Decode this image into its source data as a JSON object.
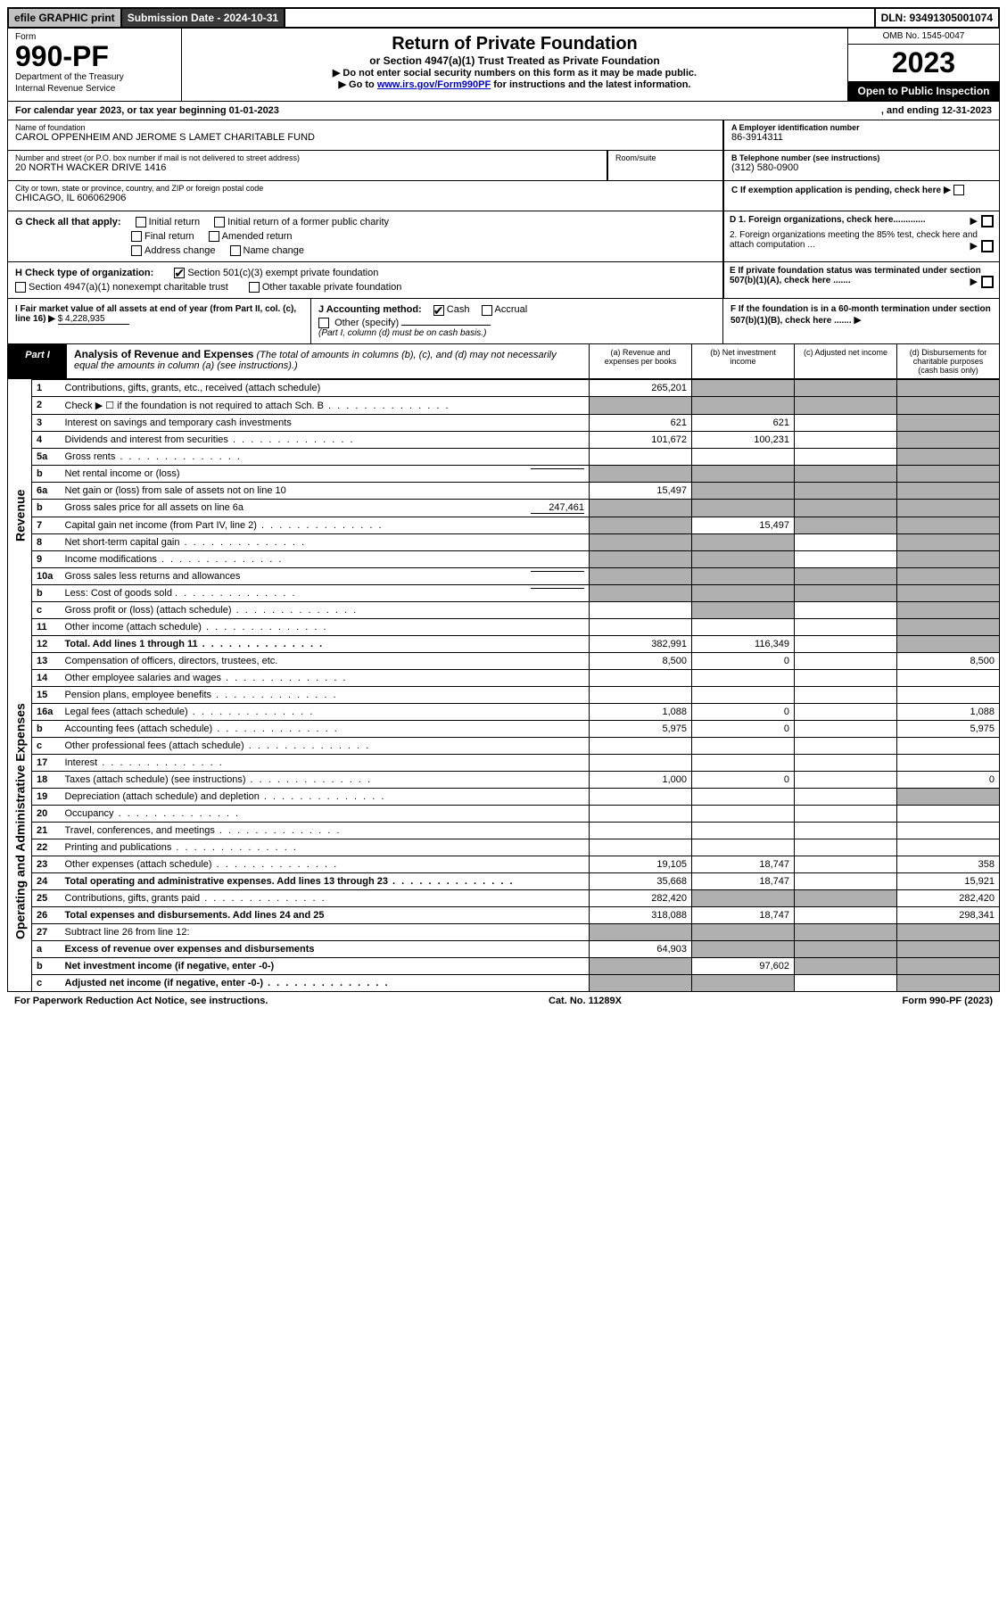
{
  "topbar": {
    "efile_btn": "efile GRAPHIC print",
    "submission_label": "Submission Date - 2024-10-31",
    "dln": "DLN: 93491305001074"
  },
  "header": {
    "form_word": "Form",
    "form_number": "990-PF",
    "dept": "Department of the Treasury",
    "irs": "Internal Revenue Service",
    "title": "Return of Private Foundation",
    "subtitle": "or Section 4947(a)(1) Trust Treated as Private Foundation",
    "note1": "▶ Do not enter social security numbers on this form as it may be made public.",
    "note2_prefix": "▶ Go to ",
    "note2_link": "www.irs.gov/Form990PF",
    "note2_suffix": " for instructions and the latest information.",
    "omb": "OMB No. 1545-0047",
    "year": "2023",
    "open": "Open to Public Inspection"
  },
  "calendar": {
    "text_left": "For calendar year 2023, or tax year beginning 01-01-2023",
    "text_right": ", and ending 12-31-2023"
  },
  "foundation": {
    "name_label": "Name of foundation",
    "name": "CAROL OPPENHEIM AND JEROME S LAMET CHARITABLE FUND",
    "ein_label": "A Employer identification number",
    "ein": "86-3914311",
    "addr_label": "Number and street (or P.O. box number if mail is not delivered to street address)",
    "addr": "20 NORTH WACKER DRIVE 1416",
    "room_label": "Room/suite",
    "tel_label": "B Telephone number (see instructions)",
    "tel": "(312) 580-0900",
    "city_label": "City or town, state or province, country, and ZIP or foreign postal code",
    "city": "CHICAGO, IL  606062906",
    "c_label": "C If exemption application is pending, check here"
  },
  "checks": {
    "G_label": "G Check all that apply:",
    "initial": "Initial return",
    "initial_former": "Initial return of a former public charity",
    "final": "Final return",
    "amended": "Amended return",
    "addr_change": "Address change",
    "name_change": "Name change",
    "D1": "D 1. Foreign organizations, check here.............",
    "D2": "2. Foreign organizations meeting the 85% test, check here and attach computation ...",
    "H_label": "H Check type of organization:",
    "H501c3": "Section 501(c)(3) exempt private foundation",
    "H4947": "Section 4947(a)(1) nonexempt charitable trust",
    "Hother": "Other taxable private foundation",
    "E_label": "E If private foundation status was terminated under section 507(b)(1)(A), check here .......",
    "I_label": "I Fair market value of all assets at end of year (from Part II, col. (c), line 16) ▶",
    "I_value": "$ 4,228,935",
    "J_label": "J Accounting method:",
    "J_cash": "Cash",
    "J_accrual": "Accrual",
    "J_other": "Other (specify)",
    "J_note": "(Part I, column (d) must be on cash basis.)",
    "F_label": "F If the foundation is in a 60-month termination under section 507(b)(1)(B), check here ......."
  },
  "part1": {
    "label": "Part I",
    "title": "Analysis of Revenue and Expenses",
    "title_note": " (The total of amounts in columns (b), (c), and (d) may not necessarily equal the amounts in column (a) (see instructions).)",
    "col_a": "(a) Revenue and expenses per books",
    "col_b": "(b) Net investment income",
    "col_c": "(c) Adjusted net income",
    "col_d": "(d) Disbursements for charitable purposes (cash basis only)"
  },
  "sections": {
    "revenue": "Revenue",
    "expenses": "Operating and Administrative Expenses"
  },
  "rows": [
    {
      "n": "1",
      "desc": "Contributions, gifts, grants, etc., received (attach schedule)",
      "a": "265,201",
      "b": "grey",
      "c": "grey",
      "d": "grey"
    },
    {
      "n": "2",
      "desc": "Check ▶ ☐ if the foundation is not required to attach Sch. B",
      "dots": true,
      "a": "grey",
      "b": "grey",
      "c": "grey",
      "d": "grey"
    },
    {
      "n": "3",
      "desc": "Interest on savings and temporary cash investments",
      "a": "621",
      "b": "621",
      "c": "",
      "d": "grey"
    },
    {
      "n": "4",
      "desc": "Dividends and interest from securities",
      "dots": true,
      "a": "101,672",
      "b": "100,231",
      "c": "",
      "d": "grey"
    },
    {
      "n": "5a",
      "desc": "Gross rents",
      "dots": true,
      "a": "",
      "b": "",
      "c": "",
      "d": "grey"
    },
    {
      "n": "b",
      "desc": "Net rental income or (loss)",
      "inline": "",
      "a": "grey",
      "b": "grey",
      "c": "grey",
      "d": "grey"
    },
    {
      "n": "6a",
      "desc": "Net gain or (loss) from sale of assets not on line 10",
      "a": "15,497",
      "b": "grey",
      "c": "grey",
      "d": "grey"
    },
    {
      "n": "b",
      "desc": "Gross sales price for all assets on line 6a",
      "inline": "247,461",
      "a": "grey",
      "b": "grey",
      "c": "grey",
      "d": "grey"
    },
    {
      "n": "7",
      "desc": "Capital gain net income (from Part IV, line 2)",
      "dots": true,
      "a": "grey",
      "b": "15,497",
      "c": "grey",
      "d": "grey"
    },
    {
      "n": "8",
      "desc": "Net short-term capital gain",
      "dots": true,
      "a": "grey",
      "b": "grey",
      "c": "",
      "d": "grey"
    },
    {
      "n": "9",
      "desc": "Income modifications",
      "dots": true,
      "a": "grey",
      "b": "grey",
      "c": "",
      "d": "grey"
    },
    {
      "n": "10a",
      "desc": "Gross sales less returns and allowances",
      "inline": "",
      "a": "grey",
      "b": "grey",
      "c": "grey",
      "d": "grey"
    },
    {
      "n": "b",
      "desc": "Less: Cost of goods sold",
      "dots": true,
      "inline": "",
      "a": "grey",
      "b": "grey",
      "c": "grey",
      "d": "grey"
    },
    {
      "n": "c",
      "desc": "Gross profit or (loss) (attach schedule)",
      "dots": true,
      "a": "",
      "b": "grey",
      "c": "",
      "d": "grey"
    },
    {
      "n": "11",
      "desc": "Other income (attach schedule)",
      "dots": true,
      "a": "",
      "b": "",
      "c": "",
      "d": "grey"
    },
    {
      "n": "12",
      "desc": "Total. Add lines 1 through 11",
      "bold": true,
      "dots": true,
      "a": "382,991",
      "b": "116,349",
      "c": "",
      "d": "grey"
    },
    {
      "n": "13",
      "desc": "Compensation of officers, directors, trustees, etc.",
      "a": "8,500",
      "b": "0",
      "c": "",
      "d": "8,500"
    },
    {
      "n": "14",
      "desc": "Other employee salaries and wages",
      "dots": true,
      "a": "",
      "b": "",
      "c": "",
      "d": ""
    },
    {
      "n": "15",
      "desc": "Pension plans, employee benefits",
      "dots": true,
      "a": "",
      "b": "",
      "c": "",
      "d": ""
    },
    {
      "n": "16a",
      "desc": "Legal fees (attach schedule)",
      "dots": true,
      "a": "1,088",
      "b": "0",
      "c": "",
      "d": "1,088"
    },
    {
      "n": "b",
      "desc": "Accounting fees (attach schedule)",
      "dots": true,
      "a": "5,975",
      "b": "0",
      "c": "",
      "d": "5,975"
    },
    {
      "n": "c",
      "desc": "Other professional fees (attach schedule)",
      "dots": true,
      "a": "",
      "b": "",
      "c": "",
      "d": ""
    },
    {
      "n": "17",
      "desc": "Interest",
      "dots": true,
      "a": "",
      "b": "",
      "c": "",
      "d": ""
    },
    {
      "n": "18",
      "desc": "Taxes (attach schedule) (see instructions)",
      "dots": true,
      "a": "1,000",
      "b": "0",
      "c": "",
      "d": "0"
    },
    {
      "n": "19",
      "desc": "Depreciation (attach schedule) and depletion",
      "dots": true,
      "a": "",
      "b": "",
      "c": "",
      "d": "grey"
    },
    {
      "n": "20",
      "desc": "Occupancy",
      "dots": true,
      "a": "",
      "b": "",
      "c": "",
      "d": ""
    },
    {
      "n": "21",
      "desc": "Travel, conferences, and meetings",
      "dots": true,
      "a": "",
      "b": "",
      "c": "",
      "d": ""
    },
    {
      "n": "22",
      "desc": "Printing and publications",
      "dots": true,
      "a": "",
      "b": "",
      "c": "",
      "d": ""
    },
    {
      "n": "23",
      "desc": "Other expenses (attach schedule)",
      "dots": true,
      "a": "19,105",
      "b": "18,747",
      "c": "",
      "d": "358"
    },
    {
      "n": "24",
      "desc": "Total operating and administrative expenses. Add lines 13 through 23",
      "bold": true,
      "dots": true,
      "a": "35,668",
      "b": "18,747",
      "c": "",
      "d": "15,921"
    },
    {
      "n": "25",
      "desc": "Contributions, gifts, grants paid",
      "dots": true,
      "a": "282,420",
      "b": "grey",
      "c": "grey",
      "d": "282,420"
    },
    {
      "n": "26",
      "desc": "Total expenses and disbursements. Add lines 24 and 25",
      "bold": true,
      "a": "318,088",
      "b": "18,747",
      "c": "",
      "d": "298,341"
    },
    {
      "n": "27",
      "desc": "Subtract line 26 from line 12:",
      "a": "grey",
      "b": "grey",
      "c": "grey",
      "d": "grey"
    },
    {
      "n": "a",
      "desc": "Excess of revenue over expenses and disbursements",
      "bold": true,
      "a": "64,903",
      "b": "grey",
      "c": "grey",
      "d": "grey"
    },
    {
      "n": "b",
      "desc": "Net investment income (if negative, enter -0-)",
      "bold": true,
      "a": "grey",
      "b": "97,602",
      "c": "grey",
      "d": "grey"
    },
    {
      "n": "c",
      "desc": "Adjusted net income (if negative, enter -0-)",
      "bold": true,
      "dots": true,
      "a": "grey",
      "b": "grey",
      "c": "",
      "d": "grey"
    }
  ],
  "footer": {
    "left": "For Paperwork Reduction Act Notice, see instructions.",
    "center": "Cat. No. 11289X",
    "right": "Form 990-PF (2023)"
  },
  "colors": {
    "grey_cell": "#b0b0b0",
    "topbar_btn_bg": "#c0c0c0",
    "topbar_sub_bg": "#3a3a3a",
    "black": "#000000",
    "link": "#0000cc"
  }
}
